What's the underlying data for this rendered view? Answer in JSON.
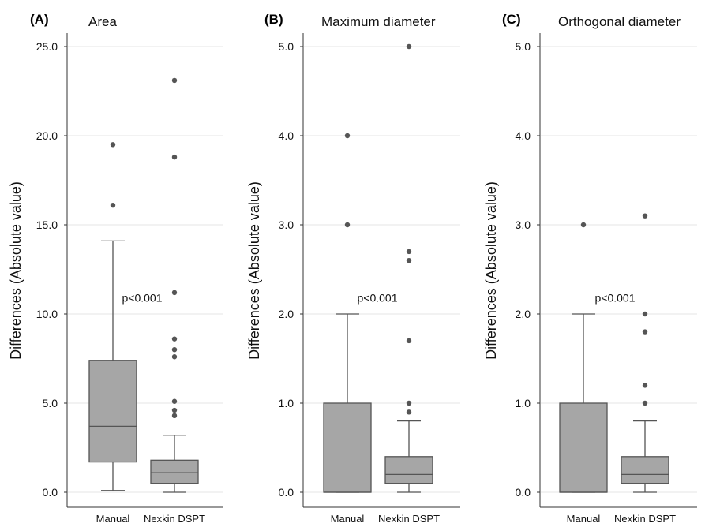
{
  "chart_data": [
    {
      "type": "box",
      "panel_label": "(A)",
      "title": "Area",
      "ylabel": "Differences (Absolute value)",
      "ylim": [
        0,
        26
      ],
      "yticks": [
        0.0,
        5.0,
        10.0,
        15.0,
        20.0,
        25.0
      ],
      "ytick_labels": [
        "0.0",
        "5.0",
        "10.0",
        "15.0",
        "20.0",
        "25.0"
      ],
      "grid": true,
      "categories": [
        "Manual",
        "Nexkin DSPT"
      ],
      "annotation": "p<0.001",
      "annotation_y": 10.9,
      "boxes": [
        {
          "name": "Manual",
          "min": 0.1,
          "q1": 1.7,
          "median": 3.7,
          "q3": 7.4,
          "max": 14.1,
          "outliers": [
            16.1,
            19.5
          ]
        },
        {
          "name": "Nexkin DSPT",
          "min": 0.0,
          "q1": 0.5,
          "median": 1.1,
          "q3": 1.8,
          "max": 3.2,
          "outliers": [
            4.3,
            4.6,
            5.1,
            7.6,
            8.0,
            8.6,
            11.2,
            18.8,
            23.1
          ]
        }
      ]
    },
    {
      "type": "box",
      "panel_label": "(B)",
      "title": "Maximum diameter",
      "ylabel": "Differences (Absolute value)",
      "ylim": [
        0,
        5.2
      ],
      "yticks": [
        0.0,
        1.0,
        2.0,
        3.0,
        4.0,
        5.0
      ],
      "ytick_labels": [
        "0.0",
        "1.0",
        "2.0",
        "3.0",
        "4.0",
        "5.0"
      ],
      "grid": true,
      "categories": [
        "Manual",
        "Nexkin DSPT"
      ],
      "annotation": "p<0.001",
      "annotation_y": 2.18,
      "boxes": [
        {
          "name": "Manual",
          "min": 0.0,
          "q1": 0.0,
          "median": 0.0,
          "q3": 1.0,
          "max": 2.0,
          "outliers": [
            3.0,
            4.0
          ]
        },
        {
          "name": "Nexkin DSPT",
          "min": 0.0,
          "q1": 0.1,
          "median": 0.2,
          "q3": 0.4,
          "max": 0.8,
          "outliers": [
            0.9,
            1.0,
            1.7,
            2.6,
            2.7,
            5.0
          ]
        }
      ]
    },
    {
      "type": "box",
      "panel_label": "(C)",
      "title": "Orthogonal diameter",
      "ylabel": "Differences (Absolute value)",
      "ylim": [
        0,
        5.2
      ],
      "yticks": [
        0.0,
        1.0,
        2.0,
        3.0,
        4.0,
        5.0
      ],
      "ytick_labels": [
        "0.0",
        "1.0",
        "2.0",
        "3.0",
        "4.0",
        "5.0"
      ],
      "grid": true,
      "categories": [
        "Manual",
        "Nexkin DSPT"
      ],
      "annotation": "p<0.001",
      "annotation_y": 2.18,
      "boxes": [
        {
          "name": "Manual",
          "min": 0.0,
          "q1": 0.0,
          "median": 0.0,
          "q3": 1.0,
          "max": 2.0,
          "outliers": [
            3.0
          ]
        },
        {
          "name": "Nexkin DSPT",
          "min": 0.0,
          "q1": 0.1,
          "median": 0.2,
          "q3": 0.4,
          "max": 0.8,
          "outliers": [
            1.0,
            1.2,
            1.8,
            2.0,
            3.1
          ]
        }
      ]
    }
  ]
}
